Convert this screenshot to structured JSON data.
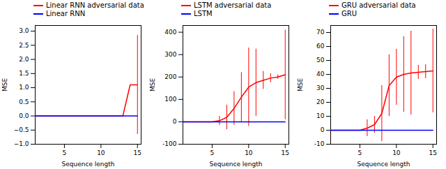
{
  "chart_data": [
    {
      "type": "line",
      "x_label": "Sequence length",
      "y_label": "MSE",
      "x": [
        1,
        2,
        3,
        4,
        5,
        6,
        7,
        8,
        9,
        10,
        11,
        12,
        13,
        14,
        15
      ],
      "series": [
        {
          "name": "Linear RNN adversarial data",
          "color": "red",
          "values": [
            0.0,
            0.0,
            0.0,
            0.0,
            0.0,
            0.0,
            0.0,
            0.0,
            0.0,
            0.0,
            0.0,
            0.0,
            0.0,
            1.1,
            1.1
          ],
          "errors": [
            0.0,
            0.0,
            0.0,
            0.0,
            0.0,
            0.0,
            0.0,
            0.0,
            0.0,
            0.0,
            0.0,
            0.0,
            0.0,
            0.0,
            1.75
          ]
        },
        {
          "name": "Linear RNN",
          "color": "blue",
          "values": [
            0.0,
            0.0,
            0.0,
            0.0,
            0.0,
            0.0,
            0.0,
            0.0,
            0.0,
            0.0,
            0.0,
            0.0,
            0.0,
            0.0,
            0.0
          ],
          "errors": [
            0.0,
            0.0,
            0.0,
            0.0,
            0.0,
            0.0,
            0.0,
            0.0,
            0.0,
            0.0,
            0.0,
            0.0,
            0.0,
            0.0,
            0.0
          ]
        }
      ],
      "xlim": [
        1,
        15.5
      ],
      "xticks": [
        5,
        10,
        15
      ],
      "ylim": [
        -1.0,
        3.2
      ],
      "yticks": [
        {
          "value": -1.0,
          "label": "−1.0"
        },
        {
          "value": -0.5,
          "label": "−0.5"
        },
        {
          "value": 0.0,
          "label": "0.0"
        },
        {
          "value": 0.5,
          "label": "0.5"
        },
        {
          "value": 1.0,
          "label": "1.0"
        },
        {
          "value": 1.5,
          "label": "1.5"
        },
        {
          "value": 2.0,
          "label": "2.0"
        },
        {
          "value": 2.5,
          "label": "2.5"
        },
        {
          "value": 3.0,
          "label": "3.0"
        }
      ],
      "grid": false,
      "legend": "upper left"
    },
    {
      "type": "line",
      "x_label": "Sequence length",
      "y_label": "MSE",
      "x": [
        1,
        2,
        3,
        4,
        5,
        6,
        7,
        8,
        9,
        10,
        11,
        12,
        13,
        14,
        15
      ],
      "series": [
        {
          "name": "LSTM adversarial data",
          "color": "red",
          "values": [
            0.0,
            0.0,
            0.0,
            0.0,
            0.0,
            5.0,
            20.0,
            60.0,
            110.0,
            155.0,
            175.0,
            185.0,
            195.0,
            200.0,
            210.0
          ],
          "errors": [
            0.0,
            0.0,
            0.0,
            0.0,
            0.0,
            20.0,
            55.0,
            75.0,
            110.0,
            175.0,
            150.0,
            40.0,
            20.0,
            10.0,
            200.0
          ]
        },
        {
          "name": "LSTM",
          "color": "blue",
          "values": [
            0.0,
            0.0,
            0.0,
            0.0,
            0.0,
            0.0,
            0.0,
            0.0,
            0.0,
            0.0,
            0.0,
            0.0,
            0.0,
            0.0,
            0.0
          ],
          "errors": [
            0.0,
            0.0,
            0.0,
            0.0,
            0.0,
            0.0,
            0.0,
            0.0,
            0.0,
            0.0,
            0.0,
            0.0,
            0.0,
            0.0,
            0.0
          ]
        }
      ],
      "xlim": [
        1,
        15.5
      ],
      "xticks": [
        5,
        10,
        15
      ],
      "ylim": [
        -100,
        430
      ],
      "yticks": [
        -100,
        0,
        100,
        200,
        300,
        400
      ],
      "grid": false,
      "legend": "upper left"
    },
    {
      "type": "line",
      "x_label": "Sequence length",
      "y_label": "MSE",
      "x": [
        1,
        2,
        3,
        4,
        5,
        6,
        7,
        8,
        9,
        10,
        11,
        12,
        13,
        14,
        15
      ],
      "series": [
        {
          "name": "GRU adversarial data",
          "color": "red",
          "values": [
            0.0,
            0.0,
            0.0,
            0.0,
            0.0,
            1.5,
            4.0,
            12.0,
            32.0,
            38.0,
            40.0,
            41.0,
            41.5,
            42.0,
            42.5
          ],
          "errors": [
            0.0,
            0.0,
            0.0,
            0.0,
            0.0,
            6.0,
            6.0,
            20.0,
            22.0,
            20.0,
            27.0,
            30.0,
            5.0,
            5.0,
            30.0
          ]
        },
        {
          "name": "GRU",
          "color": "blue",
          "values": [
            0.0,
            0.0,
            0.0,
            0.0,
            0.0,
            0.0,
            0.0,
            0.0,
            0.0,
            0.0,
            0.0,
            0.0,
            0.0,
            0.0,
            0.0
          ],
          "errors": [
            0.0,
            0.0,
            0.0,
            0.0,
            0.0,
            0.0,
            0.0,
            0.0,
            0.0,
            0.0,
            0.0,
            0.0,
            0.0,
            0.0,
            0.0
          ]
        }
      ],
      "xlim": [
        1,
        15.5
      ],
      "xticks": [
        5,
        10,
        15
      ],
      "ylim": [
        -10,
        75
      ],
      "yticks": [
        -10,
        0,
        10,
        20,
        30,
        40,
        50,
        60,
        70
      ],
      "grid": false,
      "legend": "upper left"
    }
  ]
}
